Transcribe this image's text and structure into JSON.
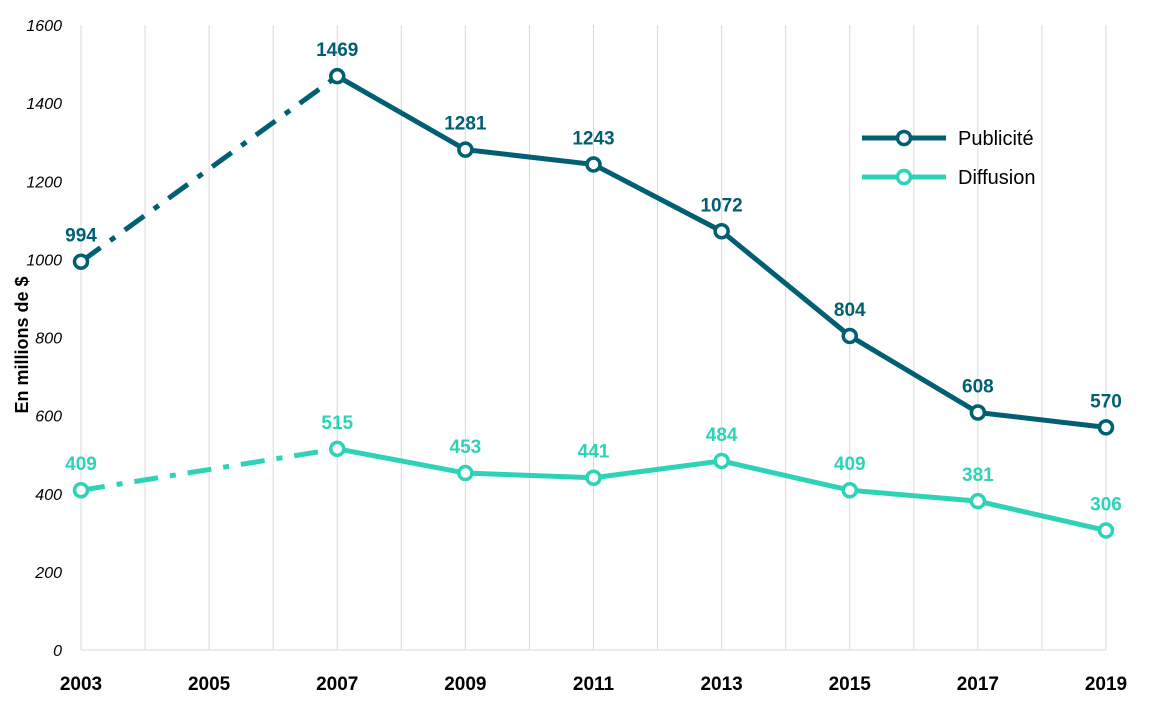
{
  "chart_data": {
    "type": "line",
    "title": "",
    "xlabel": "",
    "ylabel": "En millions de $",
    "ylim": [
      0,
      1600
    ],
    "yticks": [
      0,
      200,
      400,
      600,
      800,
      1000,
      1200,
      1400,
      1600
    ],
    "x_range": [
      2003,
      2019
    ],
    "x_tick_labels": [
      "2003",
      "2005",
      "2007",
      "2009",
      "2011",
      "2013",
      "2015",
      "2017",
      "2019"
    ],
    "grid": "vertical, every year",
    "legend_position": "right",
    "series": [
      {
        "name": "Publicité",
        "color": "#005f73",
        "dashed_until": 2007,
        "points": [
          {
            "x": 2003,
            "y": 994
          },
          {
            "x": 2007,
            "y": 1469
          },
          {
            "x": 2009,
            "y": 1281
          },
          {
            "x": 2011,
            "y": 1243
          },
          {
            "x": 2013,
            "y": 1072
          },
          {
            "x": 2015,
            "y": 804
          },
          {
            "x": 2017,
            "y": 608
          },
          {
            "x": 2019,
            "y": 570
          }
        ]
      },
      {
        "name": "Diffusion",
        "color": "#2ed3b7",
        "dashed_until": 2007,
        "points": [
          {
            "x": 2003,
            "y": 409
          },
          {
            "x": 2007,
            "y": 515
          },
          {
            "x": 2009,
            "y": 453
          },
          {
            "x": 2011,
            "y": 441
          },
          {
            "x": 2013,
            "y": 484
          },
          {
            "x": 2015,
            "y": 409
          },
          {
            "x": 2017,
            "y": 381
          },
          {
            "x": 2019,
            "y": 306
          }
        ]
      }
    ]
  }
}
